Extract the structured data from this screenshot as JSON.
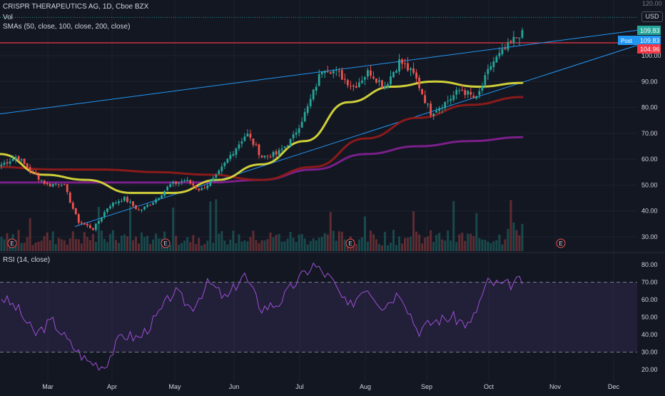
{
  "header": {
    "symbol_line": "CRISPR THERAPEUTICS AG, 1D, Cboe BZX",
    "vol_label": "Vol",
    "sma_label": "SMAs (50, close, 100, close, 200, close)",
    "rsi_label": "RSI (14, close)",
    "currency": "USD",
    "top_cut_label": "120.00"
  },
  "chart_data": [
    {
      "type": "candlestick",
      "symbol": "CRISPR THERAPEUTICS AG",
      "interval": "1D",
      "exchange": "Cboe BZX",
      "y_ticks": [
        "30.00",
        "40.00",
        "50.00",
        "60.00",
        "70.00",
        "80.00",
        "90.00",
        "100.00"
      ],
      "x_ticks": [
        "Mar",
        "Apr",
        "May",
        "Jun",
        "Jul",
        "Aug",
        "Sep",
        "Oct",
        "Nov",
        "Dec"
      ],
      "ylim": [
        25.5,
        121.5
      ],
      "price_labels": {
        "last": "109.83",
        "post": "Post",
        "post_value": "109.83",
        "level": "104.96"
      },
      "colors": {
        "up": "#26a69a",
        "down": "#ef5350",
        "sma50": "#cfcf3a",
        "sma100": "#8b1a1a",
        "sma200": "#7b1f8a",
        "trend": "#2196f3",
        "level": "#f23645"
      },
      "horizontal_level": 104.96,
      "events": [
        "E",
        "E",
        "E",
        "E"
      ],
      "trendlines": [
        {
          "name": "upper-trend",
          "from": [
            "Jan",
            77.5
          ],
          "to": [
            "Dec",
            109.8
          ]
        },
        {
          "name": "lower-trend",
          "from": [
            "Mar",
            34
          ],
          "to": [
            "Dec",
            104
          ]
        }
      ],
      "close_anchors": [
        [
          "Jan",
          58
        ],
        [
          "Jan",
          61
        ],
        [
          "Feb",
          55
        ],
        [
          "Feb",
          50
        ],
        [
          "Feb",
          51
        ],
        [
          "Mar",
          36
        ],
        [
          "Mar",
          33
        ],
        [
          "Mar",
          42
        ],
        [
          "Mar",
          45
        ],
        [
          "Apr",
          40
        ],
        [
          "Apr",
          44
        ],
        [
          "Apr",
          50
        ],
        [
          "May",
          52
        ],
        [
          "May",
          48
        ],
        [
          "May",
          53
        ],
        [
          "May",
          62
        ],
        [
          "Jun",
          70
        ],
        [
          "Jun",
          61
        ],
        [
          "Jun",
          62
        ],
        [
          "Jul",
          68
        ],
        [
          "Jul",
          80
        ],
        [
          "Jul",
          96
        ],
        [
          "Jul",
          93
        ],
        [
          "Aug",
          88
        ],
        [
          "Aug",
          94
        ],
        [
          "Aug",
          88
        ],
        [
          "Aug",
          98
        ],
        [
          "Sep",
          92
        ],
        [
          "Sep",
          78
        ],
        [
          "Sep",
          82
        ],
        [
          "Sep",
          87
        ],
        [
          "Oct",
          83
        ],
        [
          "Oct",
          97
        ],
        [
          "Oct",
          103
        ],
        [
          "Oct",
          109.83
        ]
      ],
      "sma50": [
        [
          "Jan",
          62
        ],
        [
          "Feb",
          54
        ],
        [
          "Mar",
          52
        ],
        [
          "Apr",
          47
        ],
        [
          "May",
          47
        ],
        [
          "Jun",
          52
        ],
        [
          "Jun",
          58
        ],
        [
          "Jul",
          67
        ],
        [
          "Aug",
          82
        ],
        [
          "Aug",
          88
        ],
        [
          "Sep",
          90
        ],
        [
          "Oct",
          88
        ],
        [
          "Oct",
          89.5
        ]
      ],
      "sma100": [
        [
          "Jan",
          57
        ],
        [
          "Feb",
          56
        ],
        [
          "Mar",
          56
        ],
        [
          "Apr",
          55
        ],
        [
          "May",
          54
        ],
        [
          "Jun",
          52
        ],
        [
          "Jul",
          57
        ],
        [
          "Aug",
          68
        ],
        [
          "Sep",
          76
        ],
        [
          "Oct",
          81
        ],
        [
          "Oct",
          84
        ]
      ],
      "sma200": [
        [
          "Jan",
          51
        ],
        [
          "Feb",
          51
        ],
        [
          "Mar",
          51
        ],
        [
          "Apr",
          51
        ],
        [
          "May",
          51
        ],
        [
          "Jun",
          52
        ],
        [
          "Jul",
          56
        ],
        [
          "Aug",
          62
        ],
        [
          "Sep",
          65
        ],
        [
          "Oct",
          67
        ],
        [
          "Oct",
          68.5
        ]
      ]
    },
    {
      "type": "line",
      "name": "RSI (14, close)",
      "y_ticks": [
        "20.00",
        "30.00",
        "40.00",
        "50.00",
        "60.00",
        "70.00",
        "80.00"
      ],
      "ylim": [
        17,
        84
      ],
      "band": [
        30,
        70
      ],
      "colors": {
        "line": "#9c4fd6",
        "band": "rgba(126,87,194,0.14)"
      },
      "values_anchor": [
        [
          "Jan",
          62
        ],
        [
          "Jan",
          55
        ],
        [
          "Feb",
          40
        ],
        [
          "Feb",
          48
        ],
        [
          "Feb",
          35
        ],
        [
          "Mar",
          25
        ],
        [
          "Mar",
          22
        ],
        [
          "Mar",
          40
        ],
        [
          "Mar",
          38
        ],
        [
          "Apr",
          50
        ],
        [
          "Apr",
          65
        ],
        [
          "Apr",
          55
        ],
        [
          "May",
          70
        ],
        [
          "May",
          60
        ],
        [
          "Jun",
          75
        ],
        [
          "Jun",
          55
        ],
        [
          "Jun",
          58
        ],
        [
          "Jul",
          70
        ],
        [
          "Jul",
          80
        ],
        [
          "Jul",
          72
        ],
        [
          "Aug",
          55
        ],
        [
          "Aug",
          68
        ],
        [
          "Aug",
          56
        ],
        [
          "Sep",
          65
        ],
        [
          "Sep",
          42
        ],
        [
          "Sep",
          48
        ],
        [
          "Sep",
          50
        ],
        [
          "Oct",
          45
        ],
        [
          "Oct",
          70
        ],
        [
          "Oct",
          68
        ],
        [
          "Oct",
          71
        ]
      ]
    }
  ]
}
